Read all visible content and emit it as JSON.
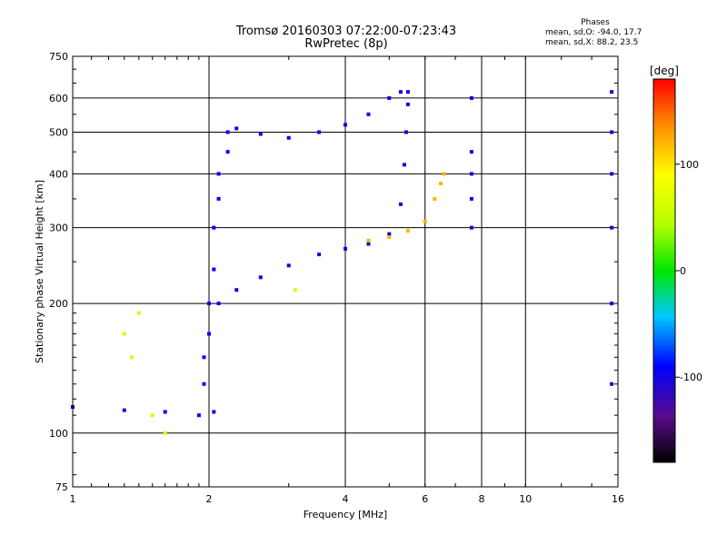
{
  "title": {
    "line1": "Tromsø 20160303 07:22:00-07:23:43",
    "line2": "RwPretec (8p)"
  },
  "phases": {
    "header": "Phases",
    "line_o": "mean, sd,O: -94.0, 17.7",
    "line_x": "mean, sd,X: 88.2, 23.5"
  },
  "chart_data": {
    "type": "scatter",
    "xlabel": "Frequency [MHz]",
    "ylabel": "Stationary phase Virtual Height [km]",
    "x_scale": "log",
    "y_scale": "log",
    "xlim": [
      1,
      16
    ],
    "ylim": [
      75,
      750
    ],
    "x_ticks": [
      1,
      2,
      4,
      6,
      8,
      10,
      16
    ],
    "x_tick_labels": [
      "1",
      "2",
      "4",
      "6",
      "8",
      "10",
      "16"
    ],
    "y_ticks": [
      75,
      100,
      200,
      300,
      400,
      500,
      600,
      750
    ],
    "y_tick_labels": [
      "75",
      "100",
      "200",
      "300",
      "400",
      "500",
      "600",
      "750"
    ],
    "grid": true,
    "colorbar": {
      "label": "[deg]",
      "range": [
        -180,
        180
      ],
      "ticks": [
        -100,
        0,
        100
      ],
      "tick_labels": [
        "-100",
        "0",
        "100"
      ]
    },
    "traces": [
      {
        "mode": "O",
        "phase_deg": -100,
        "points": [
          [
            1.0,
            115
          ],
          [
            1.3,
            113
          ],
          [
            1.6,
            112
          ],
          [
            1.9,
            110
          ],
          [
            2.05,
            112
          ],
          [
            2.1,
            200
          ],
          [
            2.3,
            215
          ],
          [
            2.6,
            230
          ],
          [
            3.0,
            245
          ],
          [
            3.5,
            260
          ],
          [
            4.0,
            268
          ],
          [
            4.5,
            275
          ],
          [
            5.0,
            290
          ],
          [
            5.3,
            340
          ],
          [
            5.4,
            420
          ],
          [
            5.45,
            500
          ],
          [
            5.5,
            580
          ],
          [
            5.5,
            620
          ]
        ]
      },
      {
        "mode": "X",
        "phase_deg": 120,
        "points": [
          [
            4.5,
            280
          ],
          [
            5.0,
            285
          ],
          [
            5.5,
            295
          ],
          [
            6.0,
            310
          ],
          [
            6.3,
            350
          ],
          [
            6.5,
            380
          ],
          [
            6.6,
            400
          ]
        ]
      },
      {
        "mode": "E",
        "phase_deg": -100,
        "points": [
          [
            2.3,
            510
          ],
          [
            2.6,
            495
          ],
          [
            3.0,
            485
          ],
          [
            3.5,
            500
          ],
          [
            4.0,
            520
          ],
          [
            4.5,
            550
          ],
          [
            5.0,
            600
          ],
          [
            5.3,
            620
          ]
        ]
      },
      {
        "mode": "scatter",
        "phase_deg": -90,
        "points": [
          [
            1.95,
            130
          ],
          [
            1.95,
            150
          ],
          [
            2.0,
            170
          ],
          [
            2.0,
            200
          ],
          [
            2.05,
            240
          ],
          [
            2.05,
            300
          ],
          [
            2.1,
            350
          ],
          [
            2.1,
            400
          ],
          [
            2.2,
            450
          ],
          [
            2.2,
            500
          ]
        ]
      },
      {
        "mode": "scatter",
        "phase_deg": 60,
        "points": [
          [
            1.3,
            170
          ],
          [
            1.35,
            150
          ],
          [
            1.4,
            190
          ],
          [
            1.5,
            110
          ],
          [
            1.6,
            100
          ],
          [
            3.1,
            215
          ]
        ]
      },
      {
        "mode": "interference",
        "phase_deg": -100,
        "points": [
          [
            7.6,
            300
          ],
          [
            7.6,
            350
          ],
          [
            7.6,
            400
          ],
          [
            7.6,
            450
          ],
          [
            7.6,
            600
          ],
          [
            15.5,
            130
          ],
          [
            15.5,
            200
          ],
          [
            15.5,
            300
          ],
          [
            15.5,
            400
          ],
          [
            15.5,
            500
          ],
          [
            15.5,
            620
          ]
        ]
      }
    ]
  }
}
